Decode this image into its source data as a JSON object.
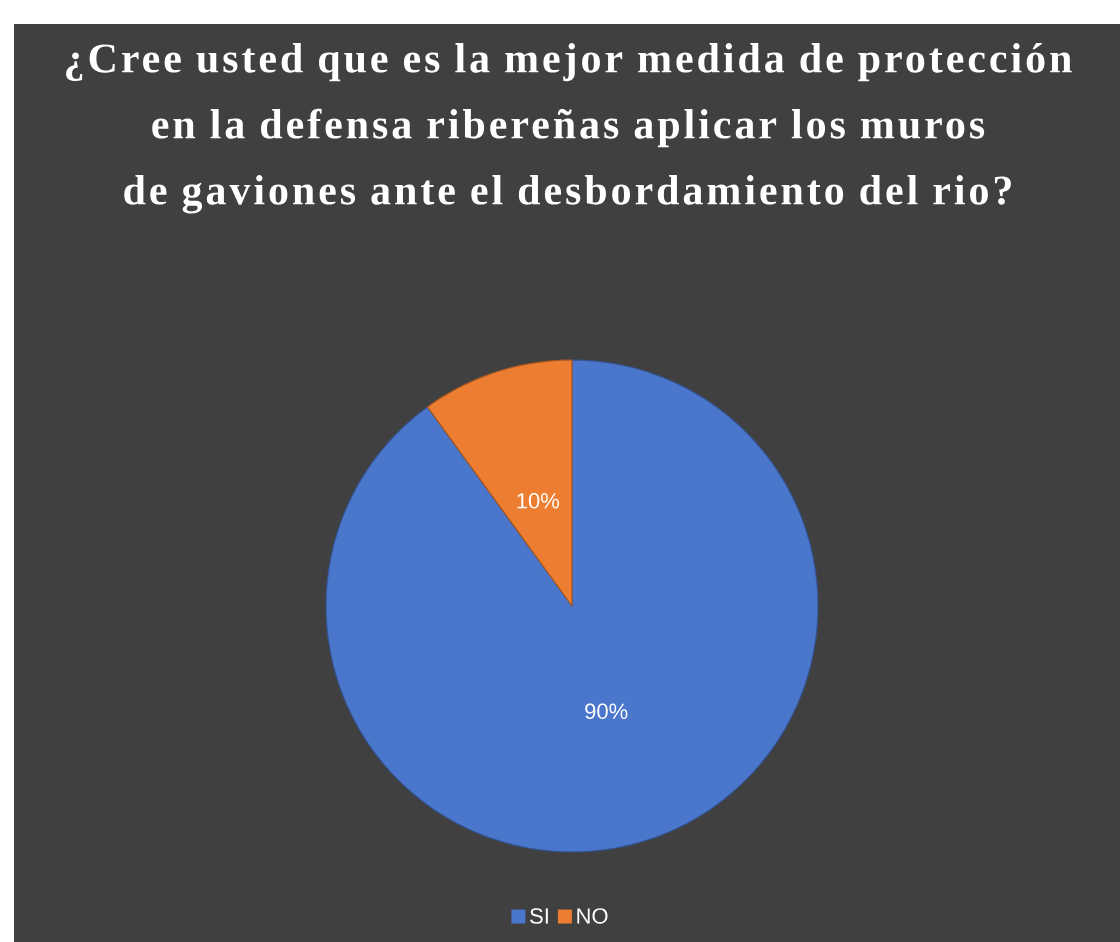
{
  "chart_data": {
    "type": "pie",
    "title": "¿Cree usted que es la mejor medida de protección en la defensa ribereñas aplicar los muros de gaviones ante el desbordamiento del rio?",
    "categories": [
      "SI",
      "NO"
    ],
    "values": [
      90,
      10
    ],
    "value_labels": [
      "90%",
      "10%"
    ],
    "colors": [
      "#4a76cc",
      "#ed7d31"
    ],
    "legend": "bottom"
  }
}
